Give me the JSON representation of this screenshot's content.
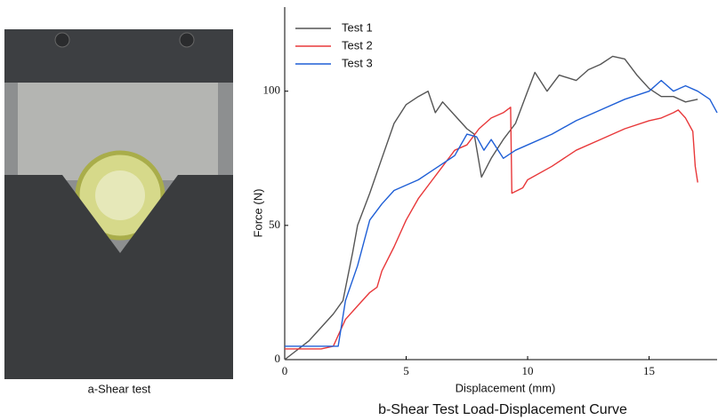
{
  "photo_caption": "a-Shear test",
  "chart_data": {
    "type": "line",
    "title": "b-Shear Test Load-Displacement Curve",
    "x_label": "Displacement (mm)",
    "y_label": "Force (N)",
    "xlim": [
      0,
      17.8
    ],
    "ylim": [
      0,
      130
    ],
    "xticks": [
      0,
      5,
      10,
      15
    ],
    "yticks": [
      0,
      50,
      100
    ],
    "legend": "upper-left",
    "series": [
      {
        "name": "Test 1",
        "color": "#555555",
        "x": [
          0,
          1,
          2,
          2.4,
          2.8,
          3,
          3.5,
          4,
          4.5,
          5,
          5.5,
          5.9,
          6.2,
          6.5,
          7,
          7.5,
          7.8,
          8.1,
          8.5,
          9,
          9.5,
          10,
          10.3,
          10.8,
          11.3,
          12,
          12.5,
          13,
          13.5,
          14,
          14.5,
          15,
          15.5,
          16,
          16.5,
          17
        ],
        "values": [
          0,
          7,
          17,
          22,
          40,
          50,
          62,
          75,
          88,
          95,
          98,
          100,
          92,
          96,
          91,
          86,
          84,
          68,
          75,
          82,
          88,
          100,
          107,
          100,
          106,
          104,
          108,
          110,
          113,
          112,
          106,
          101,
          98,
          98,
          96,
          97
        ]
      },
      {
        "name": "Test 2",
        "color": "#e8383a",
        "x": [
          0,
          1.5,
          2,
          2.5,
          3,
          3.5,
          3.8,
          4,
          4.5,
          5,
          5.5,
          6,
          6.5,
          7,
          7.5,
          8,
          8.5,
          9,
          9.3,
          9.35,
          9.8,
          10,
          11,
          12,
          13,
          14,
          15,
          15.5,
          16,
          16.2,
          16.5,
          16.8,
          16.9,
          17
        ],
        "values": [
          4,
          4,
          5,
          15,
          20,
          25,
          27,
          33,
          42,
          52,
          60,
          66,
          72,
          78,
          80,
          86,
          90,
          92,
          94,
          62,
          64,
          67,
          72,
          78,
          82,
          86,
          89,
          90,
          92,
          93,
          90,
          85,
          72,
          66
        ]
      },
      {
        "name": "Test 3",
        "color": "#1f5fd6",
        "x": [
          0,
          1,
          2.2,
          2.5,
          3,
          3.5,
          4,
          4.5,
          5,
          5.5,
          6,
          6.5,
          7,
          7.5,
          7.9,
          8.2,
          8.5,
          9,
          9.5,
          10,
          11,
          12,
          13,
          14,
          15,
          15.5,
          16,
          16.5,
          17,
          17.5,
          17.8
        ],
        "values": [
          5,
          5,
          5,
          22,
          35,
          52,
          58,
          63,
          65,
          67,
          70,
          73,
          76,
          84,
          83,
          78,
          82,
          75,
          78,
          80,
          84,
          89,
          93,
          97,
          100,
          104,
          100,
          102,
          100,
          97,
          92
        ]
      }
    ]
  }
}
